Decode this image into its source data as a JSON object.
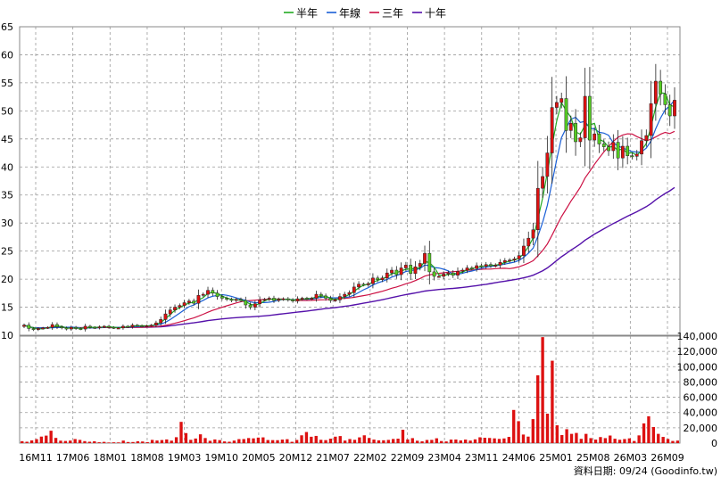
{
  "chart_data": {
    "type": "candlestick",
    "legend": [
      {
        "label": "半年",
        "color": "#22aa22"
      },
      {
        "label": "年線",
        "color": "#1a5fd6"
      },
      {
        "label": "三年",
        "color": "#cc1144"
      },
      {
        "label": "十年",
        "color": "#5511aa"
      }
    ],
    "legend_position": "top-center",
    "grid": true,
    "price_axis": {
      "min": 10,
      "max": 65,
      "ticks": [
        "10",
        "15",
        "20",
        "25",
        "30",
        "35",
        "40",
        "45",
        "50",
        "55",
        "60",
        "65"
      ]
    },
    "volume_axis": {
      "min": 0,
      "max": 140000,
      "ticks": [
        "0",
        "20,000",
        "40,000",
        "60,000",
        "80,000",
        "100,000",
        "120,000",
        "140,000"
      ]
    },
    "x_tick_labels": [
      "16M11",
      "17M06",
      "18M01",
      "18M08",
      "19M03",
      "19M10",
      "20M05",
      "20M12",
      "21M07",
      "22M02",
      "22M09",
      "23M04",
      "23M11",
      "24M06",
      "25M01",
      "25M08",
      "26M03",
      "26M09"
    ],
    "footer": "資料日期: 09/24  (Goodinfo.tw)",
    "up_color": "#dd1111",
    "down_color": "#55cc22",
    "candles_close": [
      11.8,
      11.2,
      11.0,
      11.2,
      11.3,
      11.4,
      11.9,
      11.5,
      11.3,
      11.1,
      11.4,
      11.2,
      11.1,
      11.6,
      11.4,
      11.3,
      11.5,
      11.6,
      11.4,
      11.3,
      11.3,
      11.6,
      11.5,
      11.8,
      11.7,
      11.6,
      11.7,
      11.8,
      12.2,
      12.8,
      13.8,
      14.5,
      15.0,
      15.3,
      15.8,
      16.1,
      15.7,
      17.1,
      17.3,
      18.0,
      17.5,
      16.9,
      16.6,
      16.4,
      16.2,
      16.4,
      16.2,
      15.4,
      15.0,
      15.6,
      16.3,
      16.4,
      16.6,
      16.2,
      16.4,
      16.5,
      16.3,
      16.1,
      16.5,
      16.6,
      16.5,
      16.6,
      17.3,
      17.0,
      16.6,
      16.2,
      16.3,
      16.9,
      17.3,
      17.6,
      18.6,
      19.1,
      19.0,
      19.2,
      20.2,
      19.9,
      20.2,
      21.1,
      21.6,
      20.8,
      22.0,
      22.5,
      21.0,
      22.2,
      22.8,
      24.6,
      21.3,
      20.5,
      20.5,
      20.9,
      21.1,
      20.7,
      21.4,
      21.6,
      22.0,
      21.9,
      22.4,
      22.3,
      22.6,
      22.4,
      22.5,
      23.0,
      23.3,
      23.4,
      23.6,
      24.2,
      25.9,
      27.3,
      28.8,
      36.2,
      38.3,
      42.5,
      50.6,
      51.5,
      52.2,
      46.5,
      47.8,
      44.5,
      45.2,
      52.6,
      44.8,
      45.9,
      44.1,
      43.6,
      42.9,
      44.4,
      41.6,
      43.7,
      42.0,
      41.9,
      42.3,
      44.7,
      45.6,
      51.3,
      55.3,
      53.0,
      51.1,
      49.1,
      51.9
    ],
    "volume": [
      2500,
      1800,
      3500,
      5200,
      8500,
      9800,
      16200,
      6800,
      3200,
      2800,
      3300,
      5300,
      4200,
      2600,
      1800,
      2400,
      1100,
      1600,
      800,
      1000,
      900,
      3300,
      1400,
      1400,
      2400,
      2100,
      1300,
      4200,
      3400,
      4000,
      4800,
      3200,
      7700,
      27800,
      13100,
      4300,
      6000,
      11500,
      6600,
      3000,
      4800,
      3900,
      2200,
      1800,
      3300,
      5200,
      5300,
      6600,
      6200,
      7200,
      7500,
      4000,
      3900,
      3800,
      4600,
      5100,
      1700,
      4100,
      10200,
      14500,
      8300,
      9400,
      4300,
      3900,
      5800,
      8400,
      9200,
      3300,
      5300,
      4300,
      7500,
      10200,
      6700,
      4600,
      3600,
      3700,
      4200,
      5400,
      5800,
      17500,
      4800,
      6500,
      3100,
      2300,
      4100,
      4200,
      6300,
      2700,
      2200,
      4600,
      4700,
      3500,
      4600,
      3300,
      4900,
      7600,
      7000,
      6700,
      6200,
      5500,
      6100,
      8100,
      43400,
      28700,
      11200,
      8500,
      31400,
      88700,
      138700,
      38500,
      107800,
      23300,
      10500,
      18200,
      12100,
      13300,
      5600,
      12100,
      6500,
      4600,
      7900,
      6500,
      9900,
      5700,
      4400,
      5300,
      6200,
      2800,
      10100,
      25800,
      35100,
      21000,
      12100,
      8100,
      5400,
      2800,
      3300
    ]
  }
}
